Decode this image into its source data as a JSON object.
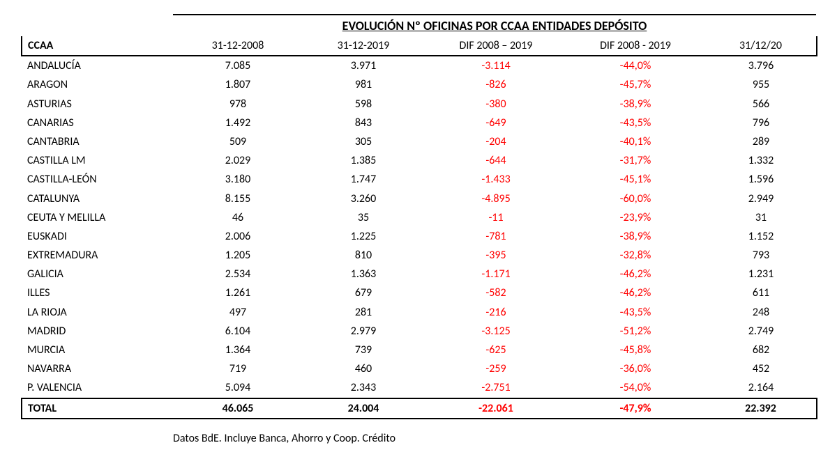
{
  "title": "EVOLUCIÓN Nº OFICINAS POR CCAA ENTIDADES DEPÓSITO",
  "columns": [
    "CCAA",
    "31-12-2008",
    "31-12-2019",
    "DIF 2008 – 2019",
    "DIF 2008 - 2019",
    "31/12/20"
  ],
  "rows": [
    {
      "ccaa": "ANDALUCÍA",
      "v2008": "7.085",
      "v2019": "3.971",
      "dif": "-3.114",
      "pct": "-44,0%",
      "v2020": "3.796"
    },
    {
      "ccaa": "ARAGON",
      "v2008": "1.807",
      "v2019": "981",
      "dif": "-826",
      "pct": "-45,7%",
      "v2020": "955"
    },
    {
      "ccaa": "ASTURIAS",
      "v2008": "978",
      "v2019": "598",
      "dif": "-380",
      "pct": "-38,9%",
      "v2020": "566"
    },
    {
      "ccaa": "CANARIAS",
      "v2008": "1.492",
      "v2019": "843",
      "dif": "-649",
      "pct": "-43,5%",
      "v2020": "796"
    },
    {
      "ccaa": "CANTABRIA",
      "v2008": "509",
      "v2019": "305",
      "dif": "-204",
      "pct": "-40,1%",
      "v2020": "289"
    },
    {
      "ccaa": "CASTILLA LM",
      "v2008": "2.029",
      "v2019": "1.385",
      "dif": "-644",
      "pct": "-31,7%",
      "v2020": "1.332"
    },
    {
      "ccaa": "CASTILLA-LEÓN",
      "v2008": "3.180",
      "v2019": "1.747",
      "dif": "-1.433",
      "pct": "-45,1%",
      "v2020": "1.596"
    },
    {
      "ccaa": "CATALUNYA",
      "v2008": "8.155",
      "v2019": "3.260",
      "dif": "-4.895",
      "pct": "-60,0%",
      "v2020": "2.949"
    },
    {
      "ccaa": "CEUTA Y MELILLA",
      "v2008": "46",
      "v2019": "35",
      "dif": "-11",
      "pct": "-23,9%",
      "v2020": "31"
    },
    {
      "ccaa": "EUSKADI",
      "v2008": "2.006",
      "v2019": "1.225",
      "dif": "-781",
      "pct": "-38,9%",
      "v2020": "1.152"
    },
    {
      "ccaa": "EXTREMADURA",
      "v2008": "1.205",
      "v2019": "810",
      "dif": "-395",
      "pct": "-32,8%",
      "v2020": "793"
    },
    {
      "ccaa": "GALICIA",
      "v2008": "2.534",
      "v2019": "1.363",
      "dif": "-1.171",
      "pct": "-46,2%",
      "v2020": "1.231"
    },
    {
      "ccaa": "ILLES",
      "v2008": "1.261",
      "v2019": "679",
      "dif": "-582",
      "pct": "-46,2%",
      "v2020": "611"
    },
    {
      "ccaa": "LA RIOJA",
      "v2008": "497",
      "v2019": "281",
      "dif": "-216",
      "pct": "-43,5%",
      "v2020": "248"
    },
    {
      "ccaa": "MADRID",
      "v2008": "6.104",
      "v2019": "2.979",
      "dif": "-3.125",
      "pct": "-51,2%",
      "v2020": "2.749"
    },
    {
      "ccaa": "MURCIA",
      "v2008": "1.364",
      "v2019": "739",
      "dif": "-625",
      "pct": "-45,8%",
      "v2020": "682"
    },
    {
      "ccaa": "NAVARRA",
      "v2008": "719",
      "v2019": "460",
      "dif": "-259",
      "pct": "-36,0%",
      "v2020": "452"
    },
    {
      "ccaa": "P. VALENCIA",
      "v2008": "5.094",
      "v2019": "2.343",
      "dif": "-2.751",
      "pct": "-54,0%",
      "v2020": "2.164"
    }
  ],
  "total": {
    "ccaa": "TOTAL",
    "v2008": "46.065",
    "v2019": "24.004",
    "dif": "-22.061",
    "pct": "-47,9%",
    "v2020": "22.392"
  },
  "footnote": "Datos BdE. Incluye Banca, Ahorro y Coop. Crédito",
  "neg_color": "#ff0000"
}
